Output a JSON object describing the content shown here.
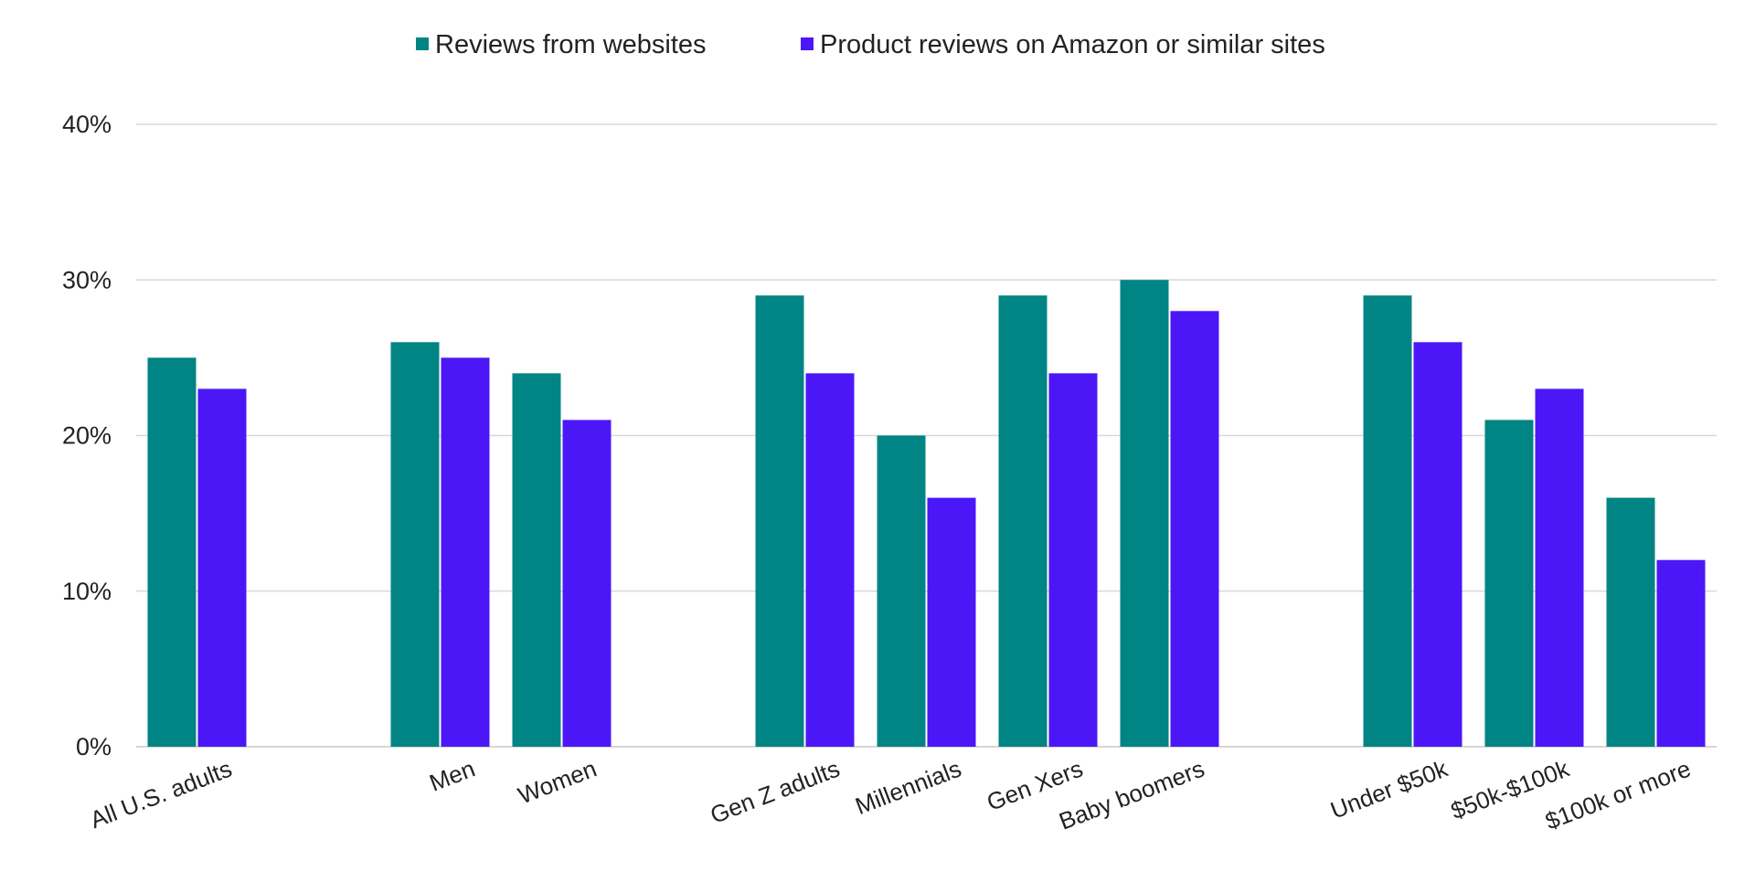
{
  "chart_data": {
    "type": "bar",
    "title": "",
    "xlabel": "",
    "ylabel": "",
    "ylim": [
      0,
      40
    ],
    "y_ticks": [
      0,
      10,
      20,
      30,
      40
    ],
    "y_tick_labels": [
      "0%",
      "10%",
      "20%",
      "30%",
      "40%"
    ],
    "y_unit": "%",
    "grid": true,
    "legend_position": "top-center",
    "categories": [
      "All U.S. adults",
      "",
      "Men",
      "Women",
      "",
      "Gen Z adults",
      "Millennials",
      "Gen Xers",
      "Baby boomers",
      "",
      "Under $50k",
      "$50k-$100k",
      "$100k or more"
    ],
    "series": [
      {
        "name": "Reviews from websites",
        "color": "#008484",
        "values": [
          25,
          null,
          26,
          24,
          null,
          29,
          20,
          29,
          30,
          null,
          29,
          21,
          16
        ]
      },
      {
        "name": "Product reviews on Amazon or similar sites",
        "color": "#4c17f7",
        "values": [
          23,
          null,
          25,
          21,
          null,
          24,
          16,
          24,
          28,
          null,
          26,
          23,
          12
        ]
      }
    ]
  }
}
